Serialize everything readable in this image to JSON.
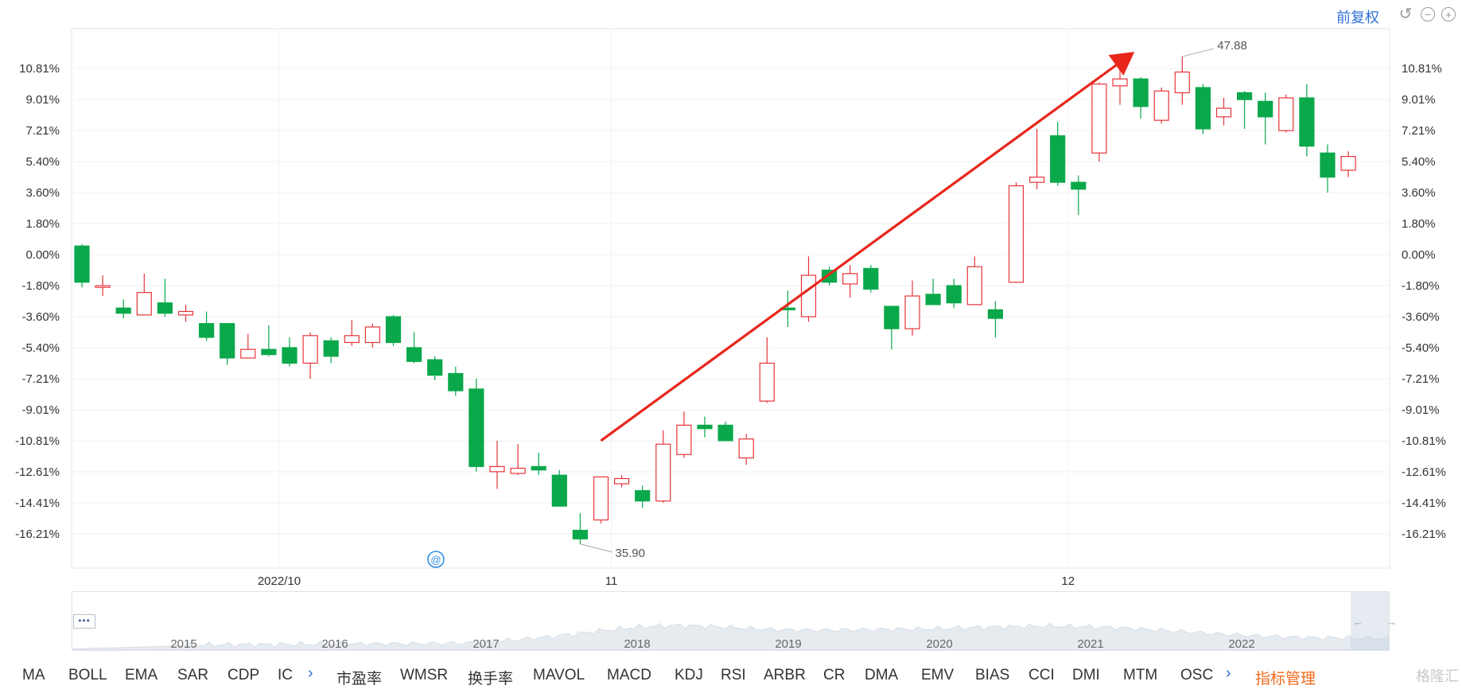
{
  "toolbar": {
    "adjust_label": "前复权",
    "undo_icon": "undo-icon",
    "zoom_out_icon": "zoom-out-icon",
    "zoom_in_icon": "zoom-in-icon"
  },
  "chart_data": {
    "type": "candlestick",
    "y_ticks": [
      "10.81%",
      "9.01%",
      "7.21%",
      "5.40%",
      "3.60%",
      "1.80%",
      "0.00%",
      "-1.80%",
      "-3.60%",
      "-5.40%",
      "-7.21%",
      "-9.01%",
      "-10.81%",
      "-12.61%",
      "-14.41%",
      "-16.21%"
    ],
    "y_tick_values": [
      10.81,
      9.01,
      7.21,
      5.4,
      3.6,
      1.8,
      0.0,
      -1.8,
      -3.6,
      -5.4,
      -7.21,
      -9.01,
      -10.81,
      -12.61,
      -14.41,
      -16.21
    ],
    "ylim": [
      -18.2,
      13.0
    ],
    "x_labels": [
      {
        "label": "2022/10",
        "index": 9.5
      },
      {
        "label": "11",
        "index": 25.5
      },
      {
        "label": "12",
        "index": 47.5
      }
    ],
    "up_color": "#e8343a",
    "down_color": "#0aa84a",
    "max_label": "47.88",
    "max_index": 53,
    "max_value": 11.5,
    "min_label": "35.90",
    "min_index": 24,
    "min_value": -16.8,
    "annotation_arrow": {
      "from": [
        25.0,
        -10.8
      ],
      "to": [
        50.5,
        11.6
      ],
      "color": "#e8261c"
    },
    "candles": [
      {
        "o": 0.5,
        "c": -1.6,
        "h": 0.6,
        "l": -1.9
      },
      {
        "o": -1.9,
        "c": -1.8,
        "h": -1.2,
        "l": -2.4
      },
      {
        "o": -3.1,
        "c": -3.4,
        "h": -2.6,
        "l": -3.7
      },
      {
        "o": -3.5,
        "c": -2.2,
        "h": -1.1,
        "l": -3.5
      },
      {
        "o": -2.8,
        "c": -3.4,
        "h": -1.4,
        "l": -3.6
      },
      {
        "o": -3.5,
        "c": -3.3,
        "h": -2.9,
        "l": -3.9
      },
      {
        "o": -4.0,
        "c": -4.8,
        "h": -3.3,
        "l": -5.0
      },
      {
        "o": -4.0,
        "c": -6.0,
        "h": -4.0,
        "l": -6.4
      },
      {
        "o": -6.0,
        "c": -5.5,
        "h": -4.6,
        "l": -6.0
      },
      {
        "o": -5.5,
        "c": -5.8,
        "h": -4.1,
        "l": -5.9
      },
      {
        "o": -5.4,
        "c": -6.3,
        "h": -4.8,
        "l": -6.5
      },
      {
        "o": -6.3,
        "c": -4.7,
        "h": -4.5,
        "l": -7.2
      },
      {
        "o": -5.0,
        "c": -5.9,
        "h": -4.8,
        "l": -6.3
      },
      {
        "o": -5.1,
        "c": -4.7,
        "h": -3.8,
        "l": -5.3
      },
      {
        "o": -5.1,
        "c": -4.2,
        "h": -4.0,
        "l": -5.4
      },
      {
        "o": -3.6,
        "c": -5.1,
        "h": -3.5,
        "l": -5.3
      },
      {
        "o": -5.4,
        "c": -6.2,
        "h": -4.5,
        "l": -6.3
      },
      {
        "o": -6.1,
        "c": -7.0,
        "h": -5.9,
        "l": -7.3
      },
      {
        "o": -6.9,
        "c": -7.9,
        "h": -6.5,
        "l": -8.2
      },
      {
        "o": -7.8,
        "c": -12.3,
        "h": -7.2,
        "l": -12.6
      },
      {
        "o": -12.6,
        "c": -12.3,
        "h": -10.8,
        "l": -13.6
      },
      {
        "o": -12.7,
        "c": -12.4,
        "h": -11.0,
        "l": -12.8
      },
      {
        "o": -12.3,
        "c": -12.5,
        "h": -11.5,
        "l": -12.8
      },
      {
        "o": -12.8,
        "c": -14.6,
        "h": -12.5,
        "l": -14.6
      },
      {
        "o": -16.0,
        "c": -16.5,
        "h": -15.0,
        "l": -16.8
      },
      {
        "o": -15.4,
        "c": -12.9,
        "h": -12.9,
        "l": -15.6
      },
      {
        "o": -13.3,
        "c": -13.0,
        "h": -12.8,
        "l": -13.5
      },
      {
        "o": -13.7,
        "c": -14.3,
        "h": -13.4,
        "l": -14.7
      },
      {
        "o": -14.3,
        "c": -11.0,
        "h": -10.2,
        "l": -14.4
      },
      {
        "o": -11.6,
        "c": -9.9,
        "h": -9.1,
        "l": -11.8
      },
      {
        "o": -9.9,
        "c": -10.1,
        "h": -9.4,
        "l": -10.6
      },
      {
        "o": -9.9,
        "c": -10.8,
        "h": -9.7,
        "l": -10.8
      },
      {
        "o": -11.8,
        "c": -10.7,
        "h": -10.4,
        "l": -12.2
      },
      {
        "o": -8.5,
        "c": -6.3,
        "h": -4.8,
        "l": -8.6
      },
      {
        "o": -3.1,
        "c": -3.2,
        "h": -2.1,
        "l": -4.2
      },
      {
        "o": -3.6,
        "c": -1.2,
        "h": -0.1,
        "l": -3.9
      },
      {
        "o": -0.9,
        "c": -1.6,
        "h": -0.7,
        "l": -1.8
      },
      {
        "o": -1.7,
        "c": -1.1,
        "h": -0.6,
        "l": -2.5
      },
      {
        "o": -0.8,
        "c": -2.0,
        "h": -0.6,
        "l": -2.2
      },
      {
        "o": -3.0,
        "c": -4.3,
        "h": -3.0,
        "l": -5.5
      },
      {
        "o": -4.3,
        "c": -2.4,
        "h": -1.5,
        "l": -4.7
      },
      {
        "o": -2.3,
        "c": -2.9,
        "h": -1.4,
        "l": -2.9
      },
      {
        "o": -1.8,
        "c": -2.8,
        "h": -1.4,
        "l": -3.1
      },
      {
        "o": -2.9,
        "c": -0.7,
        "h": -0.1,
        "l": -2.9
      },
      {
        "o": -3.2,
        "c": -3.7,
        "h": -2.7,
        "l": -4.8
      },
      {
        "o": -1.6,
        "c": 4.0,
        "h": 4.2,
        "l": -1.6
      },
      {
        "o": 4.2,
        "c": 4.5,
        "h": 7.3,
        "l": 3.8
      },
      {
        "o": 6.9,
        "c": 4.2,
        "h": 7.7,
        "l": 4.0
      },
      {
        "o": 4.2,
        "c": 3.8,
        "h": 4.6,
        "l": 2.3
      },
      {
        "o": 5.9,
        "c": 9.9,
        "h": 10.0,
        "l": 5.4
      },
      {
        "o": 9.8,
        "c": 10.2,
        "h": 10.9,
        "l": 8.7
      },
      {
        "o": 10.2,
        "c": 8.6,
        "h": 10.3,
        "l": 7.9
      },
      {
        "o": 7.8,
        "c": 9.5,
        "h": 9.7,
        "l": 7.6
      },
      {
        "o": 9.4,
        "c": 10.6,
        "h": 11.5,
        "l": 8.7
      },
      {
        "o": 9.7,
        "c": 7.3,
        "h": 9.9,
        "l": 7.0
      },
      {
        "o": 8.0,
        "c": 8.5,
        "h": 9.1,
        "l": 7.5
      },
      {
        "o": 9.4,
        "c": 9.0,
        "h": 9.5,
        "l": 7.3
      },
      {
        "o": 8.9,
        "c": 8.0,
        "h": 9.4,
        "l": 6.4
      },
      {
        "o": 7.2,
        "c": 9.1,
        "h": 9.3,
        "l": 7.1
      },
      {
        "o": 9.1,
        "c": 6.3,
        "h": 9.9,
        "l": 5.7
      },
      {
        "o": 5.9,
        "c": 4.5,
        "h": 6.4,
        "l": 3.6
      },
      {
        "o": 4.9,
        "c": 5.7,
        "h": 6.0,
        "l": 4.5
      }
    ]
  },
  "navigator": {
    "years": [
      "2015",
      "2016",
      "2017",
      "2018",
      "2019",
      "2020",
      "2021",
      "2022"
    ],
    "dots_label": "•••",
    "left_arrow": "←",
    "right_arrow": "→"
  },
  "tabs": [
    "MA",
    "BOLL",
    "EMA",
    "SAR",
    "CDP",
    "IC",
    "›",
    "市盈率",
    "WMSR",
    "换手率",
    "MAVOL",
    "MACD",
    "KDJ",
    "RSI",
    "ARBR",
    "CR",
    "DMA",
    "EMV",
    "BIAS",
    "CCI",
    "DMI",
    "MTM",
    "OSC",
    "›",
    "指标管理"
  ],
  "watermark": "格隆汇"
}
